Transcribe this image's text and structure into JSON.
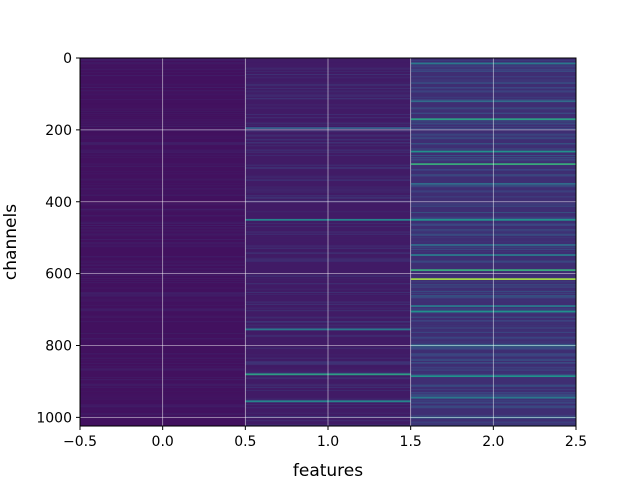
{
  "chart_data": {
    "type": "heatmap",
    "colormap": "viridis",
    "xlabel": "features",
    "ylabel": "channels",
    "xlim": [
      -0.5,
      2.5
    ],
    "ylim": [
      1024,
      0
    ],
    "y_inverted": true,
    "grid": true,
    "n_rows": 1024,
    "columns": [
      0,
      1,
      2
    ],
    "x_ticks": [
      -0.5,
      0.0,
      0.5,
      1.0,
      1.5,
      2.0,
      2.5
    ],
    "x_tick_labels": [
      "−0.5",
      "0.0",
      "0.5",
      "1.0",
      "1.5",
      "2.0",
      "2.5"
    ],
    "y_ticks": [
      0,
      200,
      400,
      600,
      800,
      1000
    ],
    "y_tick_labels": [
      "0",
      "200",
      "400",
      "600",
      "800",
      "1000"
    ],
    "column_base_intensity": [
      0.05,
      0.08,
      0.14
    ],
    "highlight_rows": [
      {
        "col": 1,
        "row": 195,
        "v": 0.3
      },
      {
        "col": 1,
        "row": 450,
        "v": 0.45
      },
      {
        "col": 1,
        "row": 755,
        "v": 0.4
      },
      {
        "col": 1,
        "row": 880,
        "v": 0.55
      },
      {
        "col": 1,
        "row": 955,
        "v": 0.45
      },
      {
        "col": 2,
        "row": 15,
        "v": 0.4
      },
      {
        "col": 2,
        "row": 120,
        "v": 0.35
      },
      {
        "col": 2,
        "row": 170,
        "v": 0.55
      },
      {
        "col": 2,
        "row": 260,
        "v": 0.5
      },
      {
        "col": 2,
        "row": 295,
        "v": 0.6
      },
      {
        "col": 2,
        "row": 350,
        "v": 0.35
      },
      {
        "col": 2,
        "row": 450,
        "v": 0.5
      },
      {
        "col": 2,
        "row": 520,
        "v": 0.35
      },
      {
        "col": 2,
        "row": 548,
        "v": 0.4
      },
      {
        "col": 2,
        "row": 590,
        "v": 0.6
      },
      {
        "col": 2,
        "row": 615,
        "v": 0.85
      },
      {
        "col": 2,
        "row": 690,
        "v": 0.4
      },
      {
        "col": 2,
        "row": 705,
        "v": 0.5
      },
      {
        "col": 2,
        "row": 800,
        "v": 0.4
      },
      {
        "col": 2,
        "row": 885,
        "v": 0.5
      },
      {
        "col": 2,
        "row": 945,
        "v": 0.4
      },
      {
        "col": 2,
        "row": 1000,
        "v": 0.35
      }
    ]
  }
}
